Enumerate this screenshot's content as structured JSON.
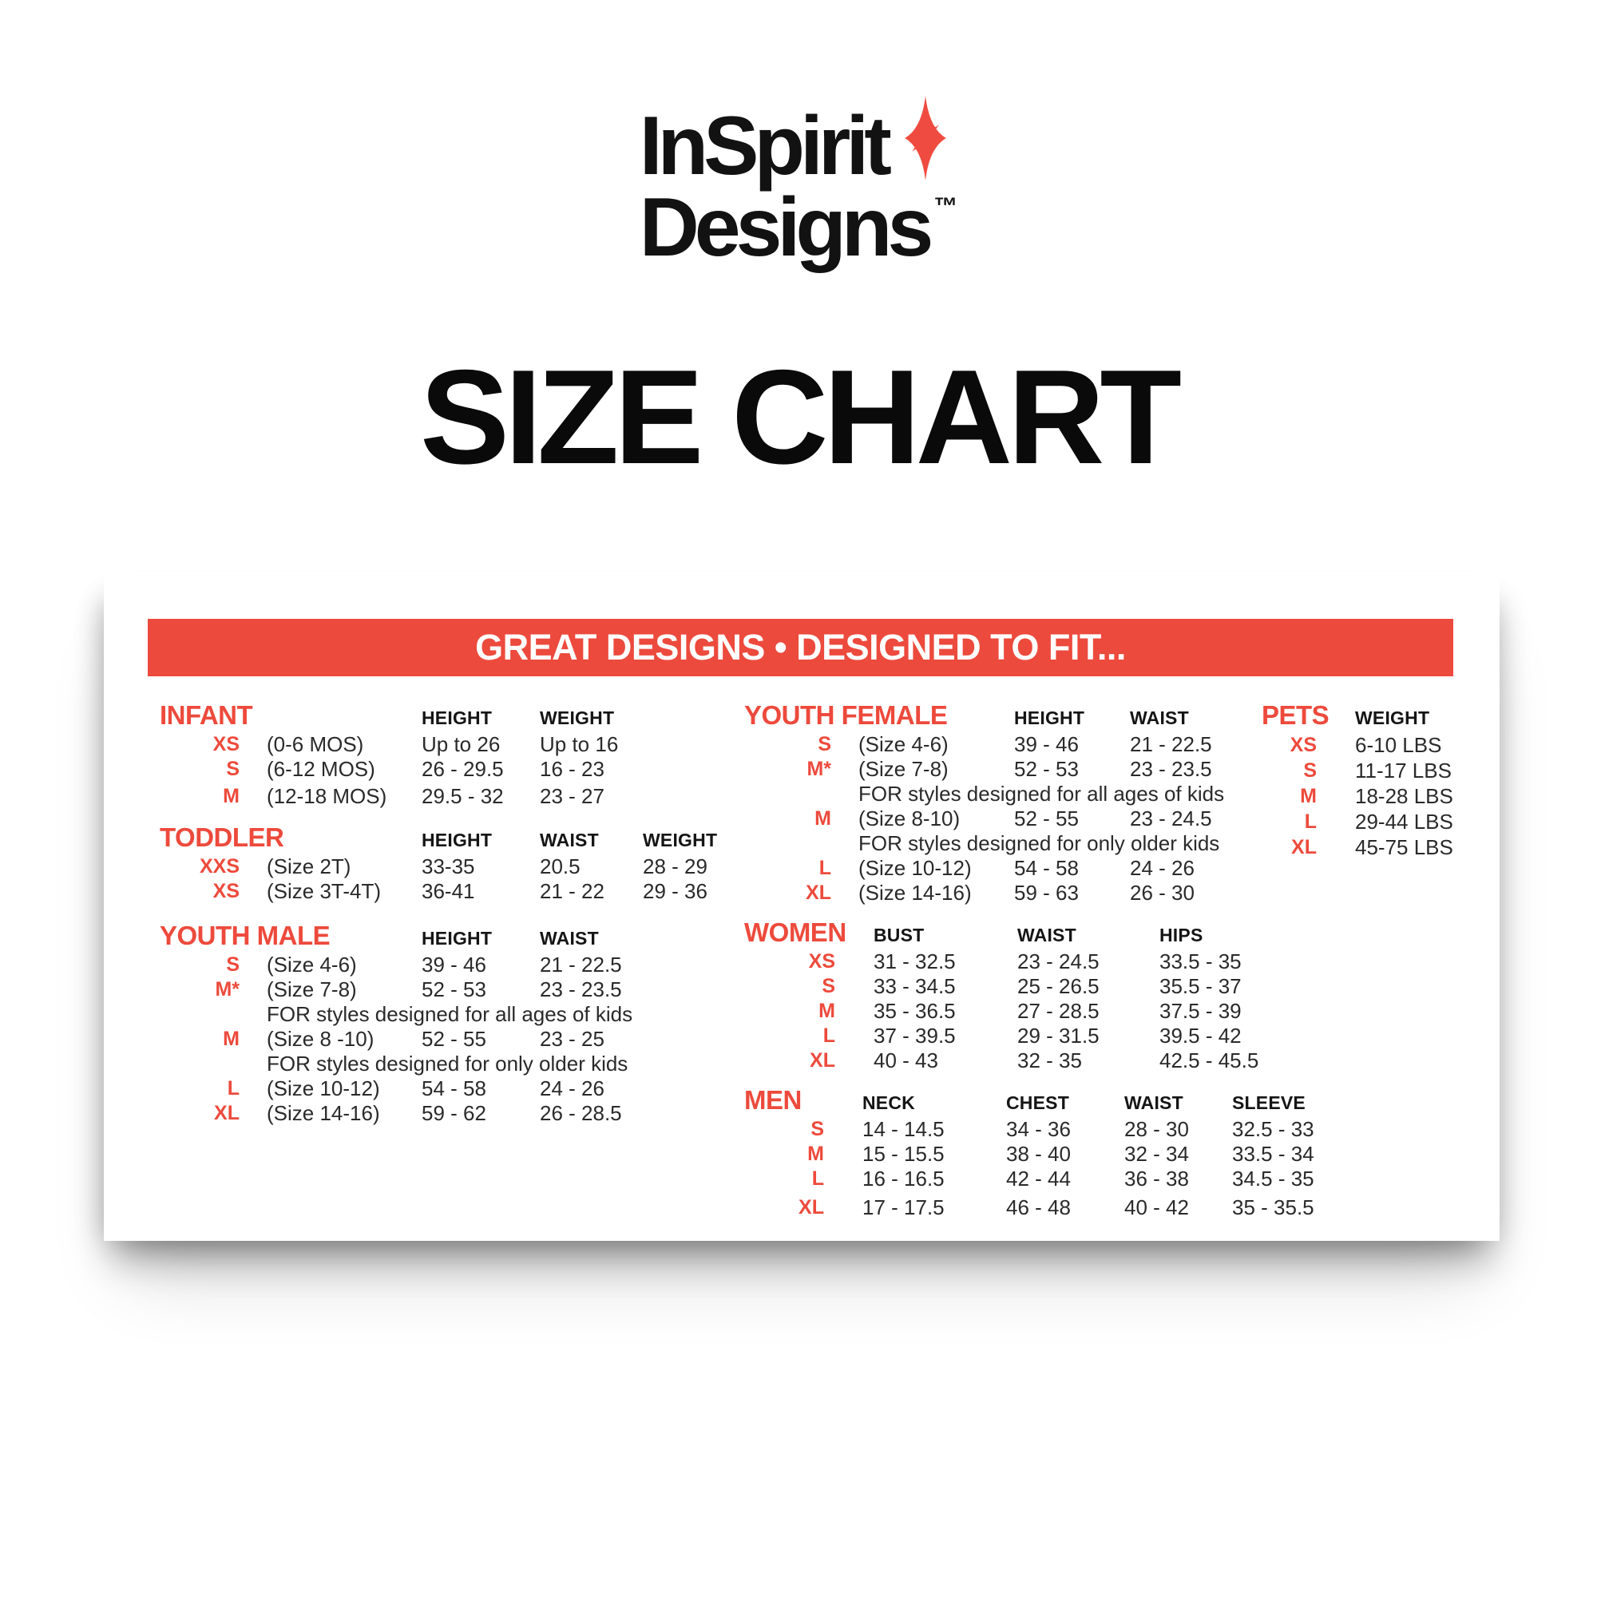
{
  "logo": {
    "line1": "InSpirit",
    "line2": "Designs",
    "tm": "™",
    "star_color": "#EF4B40"
  },
  "page_title": "SIZE CHART",
  "banner": {
    "text": "GREAT DESIGNS • DESIGNED TO FIT...",
    "bg_color": "#EC4A3D",
    "text_color": "#FFFFFF"
  },
  "colors": {
    "accent_red": "#ED4A3C",
    "text": "#2A2A2A"
  },
  "sections": [
    {
      "id": "infant",
      "title": "INFANT",
      "columns": [
        "HEIGHT",
        "WEIGHT"
      ],
      "rows": [
        {
          "size": "XS",
          "desc": "(0-6 MOS)",
          "values": [
            "Up to 26",
            "Up to 16"
          ]
        },
        {
          "size": "S",
          "desc": "(6-12 MOS)",
          "values": [
            "26 - 29.5",
            "16 - 23"
          ]
        },
        {
          "size": "M",
          "desc": "(12-18 MOS)",
          "values": [
            "29.5 - 32",
            "23 - 27"
          ]
        }
      ]
    },
    {
      "id": "toddler",
      "title": "TODDLER",
      "columns": [
        "HEIGHT",
        "WAIST",
        "WEIGHT"
      ],
      "rows": [
        {
          "size": "XXS",
          "desc": "(Size 2T)",
          "values": [
            "33-35",
            "20.5",
            "28 - 29"
          ]
        },
        {
          "size": "XS",
          "desc": "(Size 3T-4T)",
          "values": [
            "36-41",
            "21 - 22",
            "29 - 36"
          ]
        }
      ]
    },
    {
      "id": "youth_male",
      "title": "YOUTH MALE",
      "columns": [
        "HEIGHT",
        "WAIST"
      ],
      "rows": [
        {
          "size": "S",
          "desc": "(Size 4-6)",
          "values": [
            "39 - 46",
            "21 - 22.5"
          ]
        },
        {
          "size": "M*",
          "desc": "(Size 7-8)",
          "values": [
            "52 - 53",
            "23 - 23.5"
          ]
        },
        {
          "note": "FOR styles designed for all ages of kids"
        },
        {
          "size": "M",
          "desc": "(Size 8 -10)",
          "values": [
            "52 - 55",
            "23 - 25"
          ]
        },
        {
          "note": "FOR styles designed for only older kids"
        },
        {
          "size": "L",
          "desc": "(Size 10-12)",
          "values": [
            "54 - 58",
            "24 - 26"
          ]
        },
        {
          "size": "XL",
          "desc": "(Size 14-16)",
          "values": [
            "59 - 62",
            "26 - 28.5"
          ]
        }
      ]
    },
    {
      "id": "youth_female",
      "title": "YOUTH FEMALE",
      "columns": [
        "HEIGHT",
        "WAIST"
      ],
      "rows": [
        {
          "size": "S",
          "desc": "(Size 4-6)",
          "values": [
            "39 - 46",
            "21 - 22.5"
          ]
        },
        {
          "size": "M*",
          "desc": "(Size 7-8)",
          "values": [
            "52 - 53",
            "23 - 23.5"
          ]
        },
        {
          "note": "FOR styles designed for all ages of kids"
        },
        {
          "size": "M",
          "desc": "(Size 8-10)",
          "values": [
            "52 - 55",
            "23 - 24.5"
          ]
        },
        {
          "note": "FOR styles designed for only older kids"
        },
        {
          "size": "L",
          "desc": "(Size 10-12)",
          "values": [
            "54 - 58",
            "24 - 26"
          ]
        },
        {
          "size": "XL",
          "desc": "(Size 14-16)",
          "values": [
            "59 - 63",
            "26 - 30"
          ]
        }
      ]
    },
    {
      "id": "women",
      "title": "WOMEN",
      "columns": [
        "BUST",
        "WAIST",
        "HIPS"
      ],
      "rows": [
        {
          "size": "XS",
          "values": [
            "31 - 32.5",
            "23 - 24.5",
            "33.5 - 35"
          ]
        },
        {
          "size": "S",
          "values": [
            "33 - 34.5",
            "25 - 26.5",
            "35.5 - 37"
          ]
        },
        {
          "size": "M",
          "values": [
            "35 - 36.5",
            "27 - 28.5",
            "37.5 - 39"
          ]
        },
        {
          "size": "L",
          "values": [
            "37 - 39.5",
            "29 - 31.5",
            "39.5 - 42"
          ]
        },
        {
          "size": "XL",
          "values": [
            "40 - 43",
            "32 - 35",
            "42.5 - 45.5"
          ]
        }
      ]
    },
    {
      "id": "men",
      "title": "MEN",
      "columns": [
        "NECK",
        "CHEST",
        "WAIST",
        "SLEEVE"
      ],
      "rows": [
        {
          "size": "S",
          "values": [
            "14 - 14.5",
            "34 - 36",
            "28 - 30",
            "32.5 - 33"
          ]
        },
        {
          "size": "M",
          "values": [
            "15 - 15.5",
            "38 - 40",
            "32 - 34",
            "33.5 - 34"
          ]
        },
        {
          "size": "L",
          "values": [
            "16 - 16.5",
            "42 - 44",
            "36 - 38",
            "34.5 - 35"
          ]
        },
        {
          "size": "XL",
          "values": [
            "17 - 17.5",
            "46 - 48",
            "40 - 42",
            "35 - 35.5"
          ]
        }
      ]
    },
    {
      "id": "pets",
      "title": "PETS",
      "columns": [
        "WEIGHT"
      ],
      "rows": [
        {
          "size": "XS",
          "values": [
            "6-10 LBS"
          ]
        },
        {
          "size": "S",
          "values": [
            "11-17 LBS"
          ]
        },
        {
          "size": "M",
          "values": [
            "18-28 LBS"
          ]
        },
        {
          "size": "L",
          "values": [
            "29-44 LBS"
          ]
        },
        {
          "size": "XL",
          "values": [
            "45-75 LBS"
          ]
        }
      ]
    }
  ]
}
